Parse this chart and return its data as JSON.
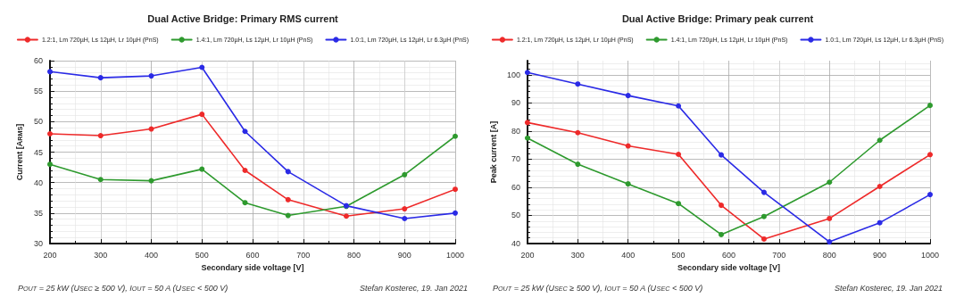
{
  "chart_data": [
    {
      "type": "line",
      "title": "Dual Active Bridge: Primary RMS current",
      "xlabel": "Secondary side voltage [V]",
      "ylabel": "Current [A$_{RMS}$]",
      "x": [
        200,
        300,
        400,
        500,
        585,
        670,
        785,
        900,
        1000
      ],
      "series": [
        {
          "name": "1.2:1, Lm 720µH, Ls 12µH, Lr 10µH (PnS)",
          "color": "#ee2a2a",
          "values": [
            48.0,
            47.7,
            48.8,
            51.2,
            42.0,
            37.2,
            34.5,
            35.7,
            38.9
          ]
        },
        {
          "name": "1.4:1, Lm 720µH, Ls 12µH, Lr 10µH (PnS)",
          "color": "#2e9a2e",
          "values": [
            43.0,
            40.5,
            40.3,
            42.2,
            36.7,
            34.6,
            36.1,
            41.3,
            47.6
          ]
        },
        {
          "name": "1.0:1, Lm 720µH, Ls 12µH, Lr 6.3µH (PnS)",
          "color": "#2a2ae6",
          "values": [
            58.2,
            57.2,
            57.5,
            58.9,
            48.4,
            41.8,
            36.2,
            34.1,
            35.0
          ]
        }
      ],
      "xlim": [
        200,
        1000
      ],
      "xticks": [
        200,
        300,
        400,
        500,
        600,
        700,
        800,
        900,
        1000
      ],
      "ylim": [
        30,
        60
      ],
      "yticks": [
        30,
        35,
        40,
        45,
        50,
        55,
        60
      ],
      "grid": true,
      "legend": "top",
      "marker": "circle",
      "line_style": "solid",
      "annotations": [
        "P$_{OUT}$ = 25 kW (U$_{SEC}$ ≥ 500 V), I$_{OUT}$ = 50 A (U$_{SEC}$ < 500 V)",
        "Stefan Kosterec, 19. Jan 2021"
      ]
    },
    {
      "type": "line",
      "title": "Dual Active Bridge: Primary peak current",
      "xlabel": "Secondary side voltage [V]",
      "ylabel": "Peak current [A]",
      "x": [
        200,
        300,
        400,
        500,
        585,
        670,
        800,
        900,
        1000
      ],
      "series": [
        {
          "name": "1.2:1, Lm 720µH, Ls 12µH, Lr 10µH (PnS)",
          "color": "#ee2a2a",
          "values": [
            83.0,
            79.4,
            74.7,
            71.7,
            53.6,
            41.6,
            48.9,
            60.3,
            71.6
          ]
        },
        {
          "name": "1.4:1, Lm 720µH, Ls 12µH, Lr 10µH (PnS)",
          "color": "#2e9a2e",
          "values": [
            77.5,
            68.2,
            61.2,
            54.2,
            43.2,
            49.6,
            61.8,
            76.7,
            89.1
          ]
        },
        {
          "name": "1.0:1, Lm 720µH, Ls 12µH, Lr 6.3µH (PnS)",
          "color": "#2a2ae6",
          "values": [
            100.8,
            96.7,
            92.6,
            88.9,
            71.5,
            58.2,
            40.6,
            47.4,
            57.4
          ]
        }
      ],
      "xlim": [
        200,
        1000
      ],
      "xticks": [
        200,
        300,
        400,
        500,
        600,
        700,
        800,
        900,
        1000
      ],
      "ylim": [
        40,
        105
      ],
      "yticks": [
        40,
        50,
        60,
        70,
        80,
        90,
        100
      ],
      "grid": true,
      "legend": "top",
      "marker": "circle",
      "line_style": "solid",
      "annotations": [
        "P$_{OUT}$ = 25 kW (U$_{SEC}$ ≥ 500 V), I$_{OUT}$ = 50 A (U$_{SEC}$ < 500 V)",
        "Stefan Kosterec, 19. Jan 2021"
      ]
    }
  ]
}
